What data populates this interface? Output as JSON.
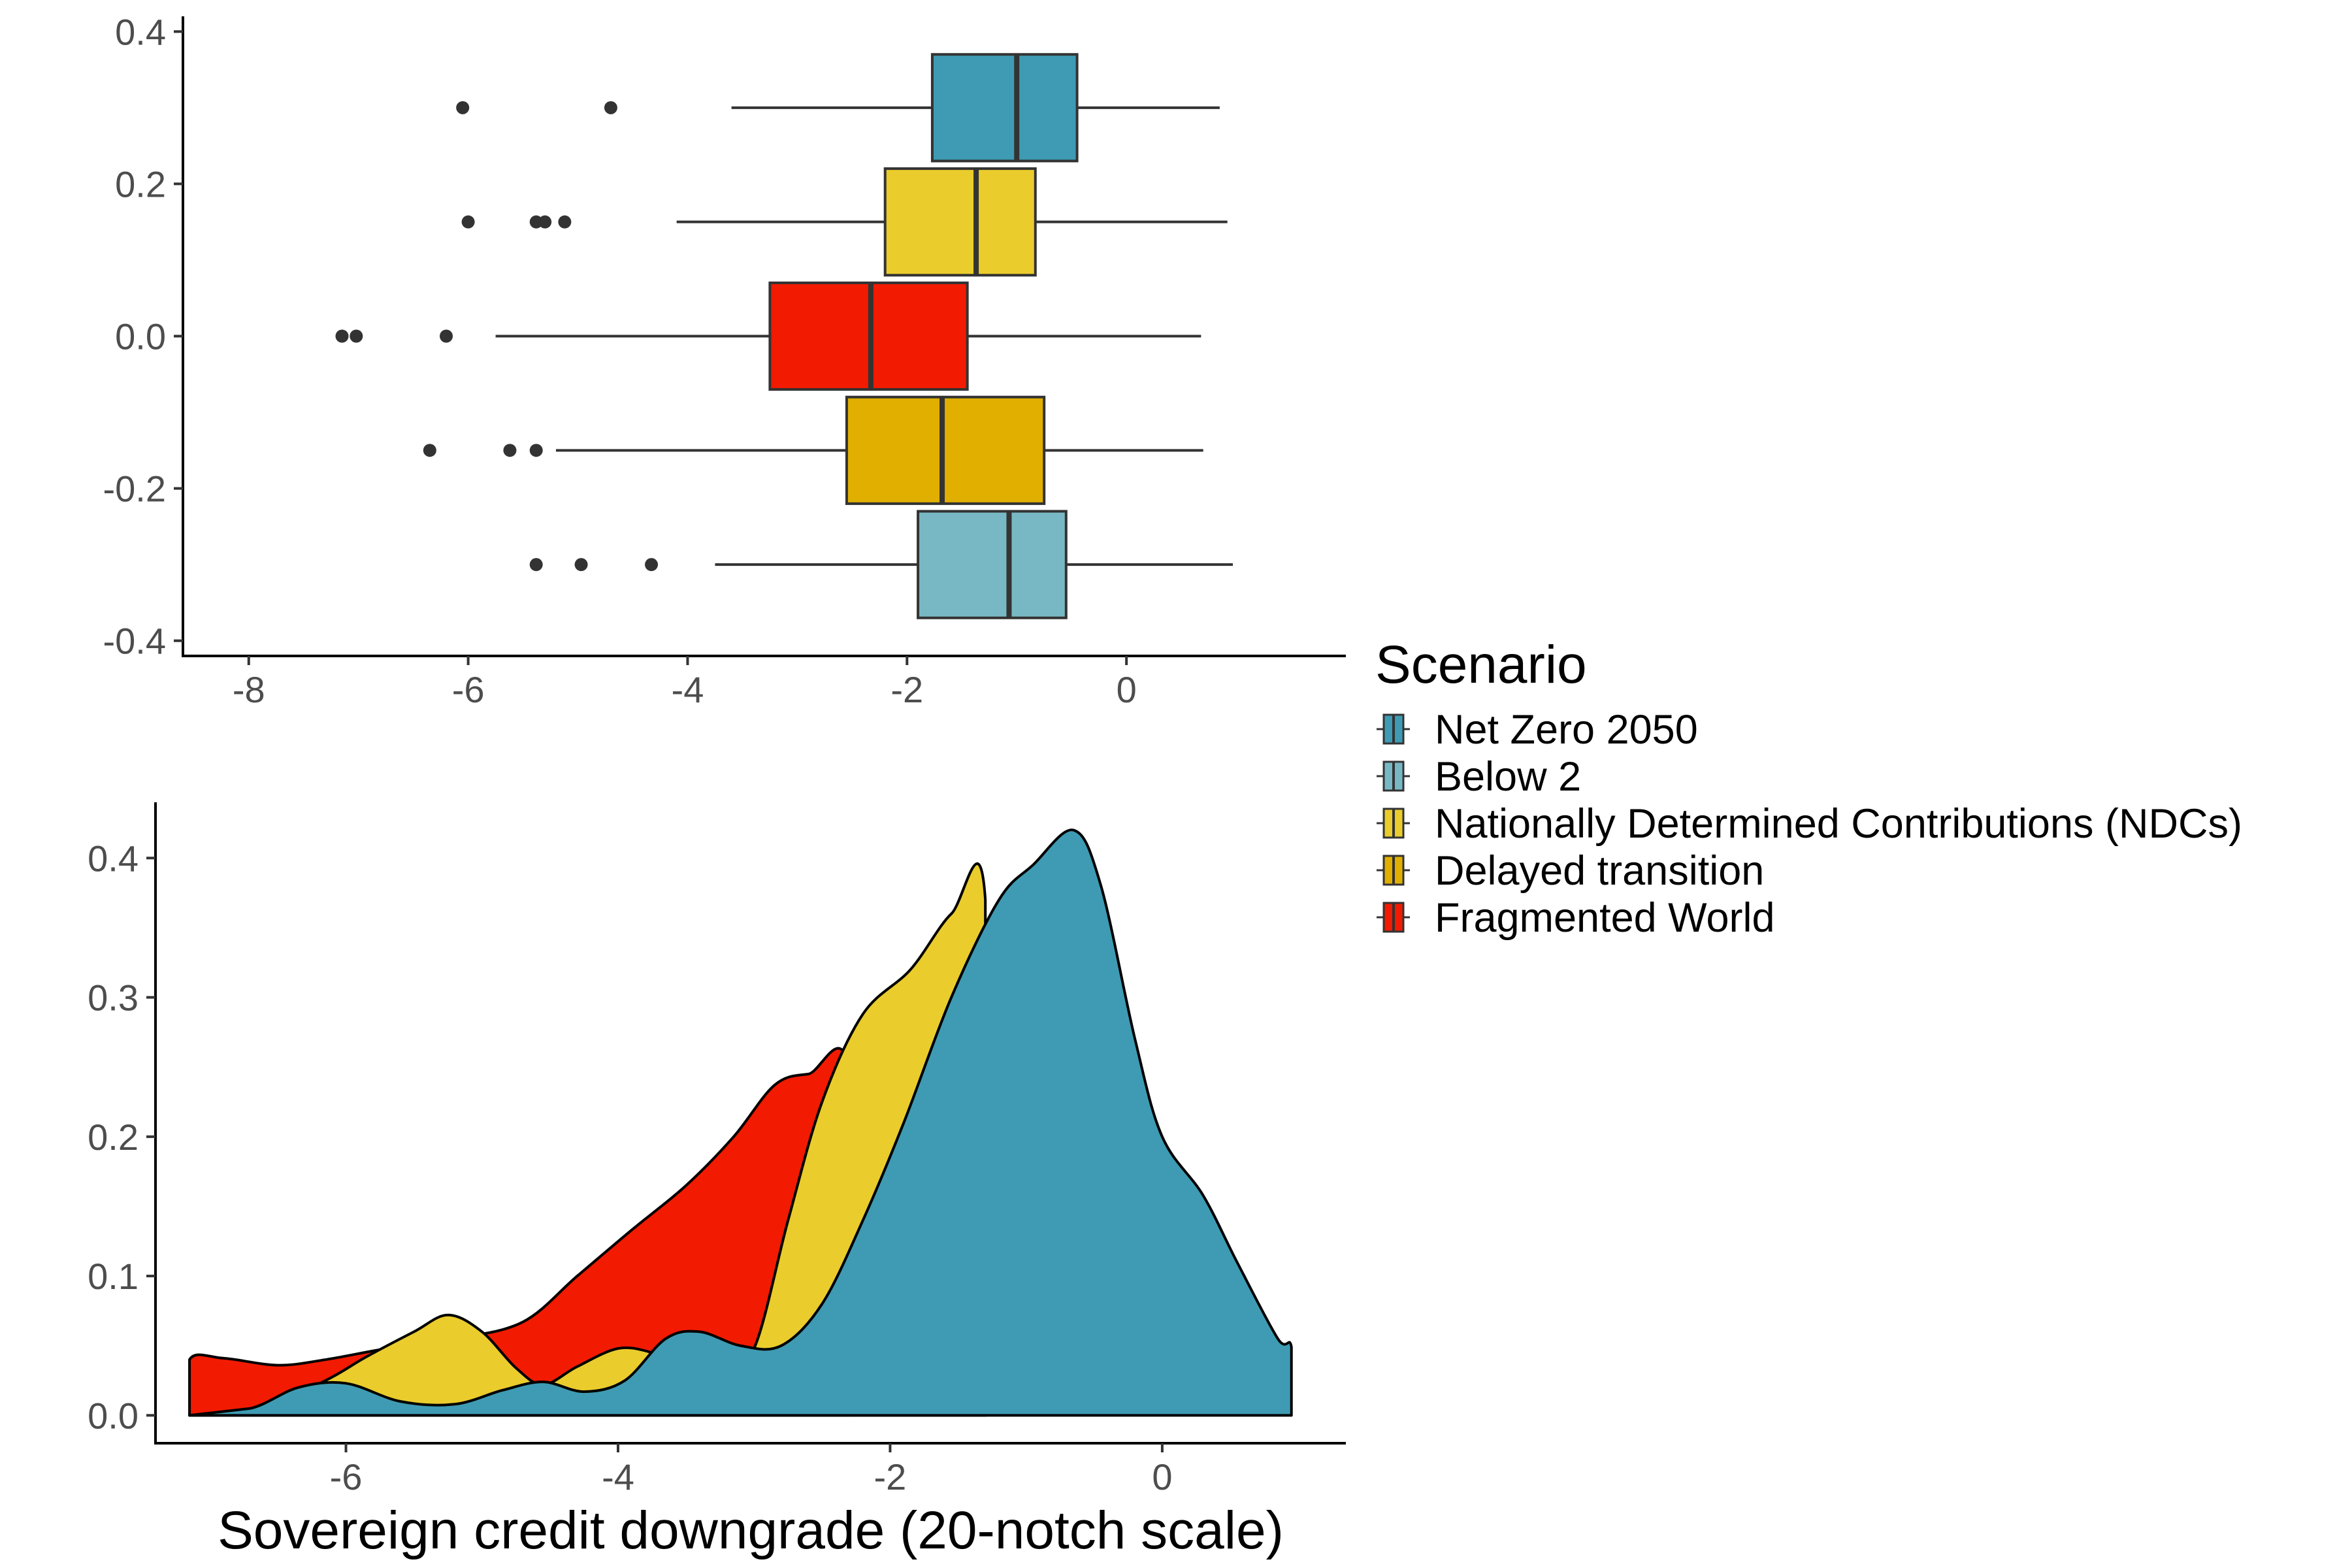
{
  "chart_data": [
    {
      "type": "boxplot",
      "orientation": "horizontal",
      "xlim": [
        -8.6,
        2.0
      ],
      "ylim": [
        -0.42,
        0.42
      ],
      "x_ticks": [
        "-8",
        "-6",
        "-4",
        "-2",
        "0"
      ],
      "x_tick_values": [
        -8,
        -6,
        -4,
        -2,
        0
      ],
      "y_ticks": [
        "0.4",
        "0.2",
        "0.0",
        "-0.2",
        "-0.4"
      ],
      "y_tick_values": [
        0.4,
        0.2,
        0.0,
        -0.2,
        -0.4
      ],
      "grid": false,
      "boxes": [
        {
          "scenario": "Net Zero 2050",
          "y": 0.3,
          "whisker_low": -3.6,
          "q1": -1.77,
          "median": -1.0,
          "q3": -0.45,
          "whisker_high": 0.85,
          "outliers": [
            -6.05,
            -4.7
          ]
        },
        {
          "scenario": "Nationally Determined Contributions (NDCs)",
          "y": 0.15,
          "whisker_low": -4.1,
          "q1": -2.2,
          "median": -1.37,
          "q3": -0.83,
          "whisker_high": 0.92,
          "outliers": [
            -6.0,
            -5.38,
            -5.3,
            -5.12
          ]
        },
        {
          "scenario": "Fragmented World",
          "y": 0.0,
          "whisker_low": -5.75,
          "q1": -3.25,
          "median": -2.33,
          "q3": -1.45,
          "whisker_high": 0.68,
          "outliers": [
            -7.15,
            -7.02,
            -6.2
          ]
        },
        {
          "scenario": "Delayed transition",
          "y": -0.15,
          "whisker_low": -5.2,
          "q1": -2.55,
          "median": -1.68,
          "q3": -0.75,
          "whisker_high": 0.7,
          "outliers": [
            -6.35,
            -5.62,
            -5.38
          ]
        },
        {
          "scenario": "Below 2",
          "y": -0.3,
          "whisker_low": -3.75,
          "q1": -1.9,
          "median": -1.07,
          "q3": -0.55,
          "whisker_high": 0.97,
          "outliers": [
            -5.38,
            -4.97,
            -4.33
          ]
        }
      ]
    },
    {
      "type": "density",
      "xlabel": "Sovereign credit downgrade (20-notch scale)",
      "xlim": [
        -7.4,
        1.35
      ],
      "ylim": [
        -0.02,
        0.44
      ],
      "x_ticks": [
        "-6",
        "-4",
        "-2",
        "0"
      ],
      "x_tick_values": [
        -6,
        -4,
        -2,
        0
      ],
      "y_ticks": [
        "0.4",
        "0.3",
        "0.2",
        "0.1",
        "0.0"
      ],
      "y_tick_values": [
        0.4,
        0.3,
        0.2,
        0.1,
        0.0
      ],
      "grid": false,
      "series": [
        {
          "name": "Fragmented World",
          "points": [
            [
              -7.15,
              0.0
            ],
            [
              -7.15,
              0.04
            ],
            [
              -6.9,
              0.041
            ],
            [
              -6.5,
              0.036
            ],
            [
              -6.15,
              0.04
            ],
            [
              -5.7,
              0.048
            ],
            [
              -5.2,
              0.055
            ],
            [
              -4.7,
              0.067
            ],
            [
              -4.3,
              0.1
            ],
            [
              -3.9,
              0.133
            ],
            [
              -3.5,
              0.165
            ],
            [
              -3.15,
              0.2
            ],
            [
              -2.85,
              0.237
            ],
            [
              -2.6,
              0.245
            ],
            [
              -2.3,
              0.245
            ],
            [
              -2.3,
              0.0
            ]
          ]
        },
        {
          "name": "Nationally Determined Contributions (NDCs)",
          "points": [
            [
              -7.15,
              0.0
            ],
            [
              -6.6,
              0.006
            ],
            [
              -6.15,
              0.025
            ],
            [
              -5.85,
              0.042
            ],
            [
              -5.5,
              0.06
            ],
            [
              -5.25,
              0.072
            ],
            [
              -5.0,
              0.06
            ],
            [
              -4.75,
              0.034
            ],
            [
              -4.55,
              0.022
            ],
            [
              -4.3,
              0.035
            ],
            [
              -4.0,
              0.048
            ],
            [
              -3.75,
              0.045
            ],
            [
              -3.5,
              0.035
            ],
            [
              -3.25,
              0.028
            ],
            [
              -3.0,
              0.048
            ],
            [
              -2.75,
              0.14
            ],
            [
              -2.5,
              0.225
            ],
            [
              -2.2,
              0.288
            ],
            [
              -1.85,
              0.32
            ],
            [
              -1.55,
              0.36
            ],
            [
              -1.3,
              0.37
            ],
            [
              -1.3,
              0.0
            ]
          ]
        },
        {
          "name": "Net Zero 2050",
          "points": [
            [
              -7.15,
              0.0
            ],
            [
              -6.7,
              0.005
            ],
            [
              -6.35,
              0.02
            ],
            [
              -6.0,
              0.023
            ],
            [
              -5.6,
              0.01
            ],
            [
              -5.2,
              0.008
            ],
            [
              -4.85,
              0.018
            ],
            [
              -4.55,
              0.024
            ],
            [
              -4.25,
              0.017
            ],
            [
              -3.95,
              0.025
            ],
            [
              -3.65,
              0.055
            ],
            [
              -3.4,
              0.06
            ],
            [
              -3.1,
              0.05
            ],
            [
              -2.8,
              0.05
            ],
            [
              -2.5,
              0.08
            ],
            [
              -2.2,
              0.14
            ],
            [
              -1.9,
              0.21
            ],
            [
              -1.55,
              0.3
            ],
            [
              -1.2,
              0.37
            ],
            [
              -0.95,
              0.395
            ],
            [
              -0.65,
              0.42
            ],
            [
              -0.45,
              0.38
            ],
            [
              -0.2,
              0.27
            ],
            [
              0.0,
              0.2
            ],
            [
              0.3,
              0.158
            ],
            [
              0.55,
              0.11
            ],
            [
              0.85,
              0.055
            ],
            [
              0.95,
              0.049
            ],
            [
              0.95,
              0.0
            ]
          ]
        }
      ]
    }
  ],
  "legend": {
    "title": "Scenario",
    "position": "right",
    "items": [
      {
        "label": "Net Zero 2050",
        "color": "#3E9BB3"
      },
      {
        "label": "Below 2",
        "color": "#78B8C4"
      },
      {
        "label": "Nationally Determined Contributions (NDCs)",
        "color": "#EACC2C"
      },
      {
        "label": "Delayed transition",
        "color": "#E0AF00"
      },
      {
        "label": "Fragmented World",
        "color": "#F21A00"
      }
    ]
  },
  "colors": {
    "Net Zero 2050": "#3E9BB3",
    "Below 2": "#78B8C4",
    "Nationally Determined Contributions (NDCs)": "#EACC2C",
    "Delayed transition": "#E0AF00",
    "Fragmented World": "#F21A00",
    "outline": "#333333"
  }
}
